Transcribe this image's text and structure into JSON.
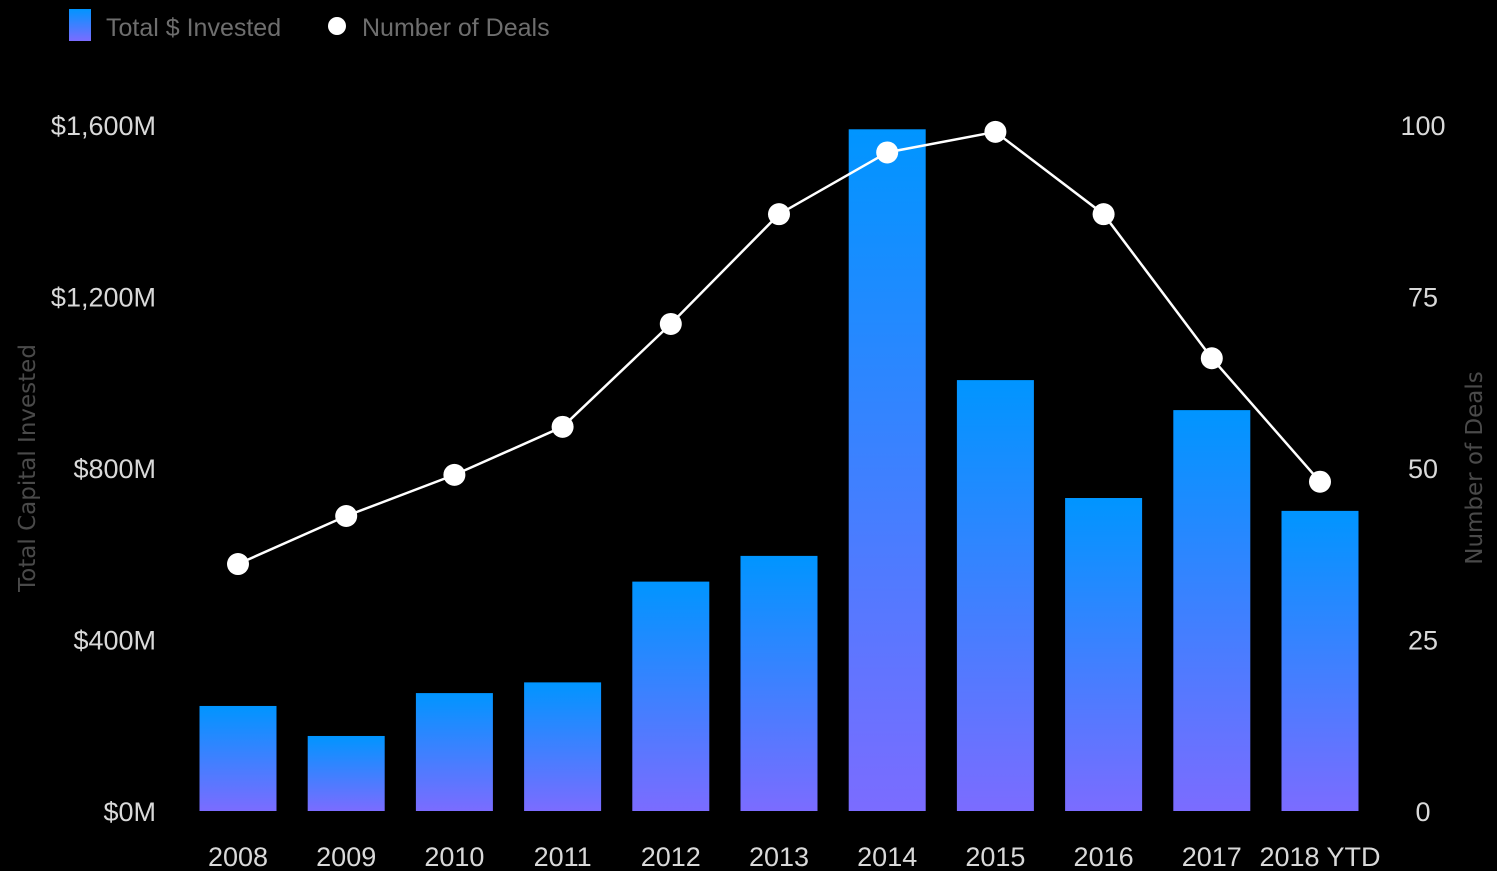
{
  "chart_data": {
    "type": "bar",
    "title": "",
    "categories": [
      "2008",
      "2009",
      "2010",
      "2011",
      "2012",
      "2013",
      "2014",
      "2015",
      "2016",
      "2017",
      "2018 YTD"
    ],
    "series": [
      {
        "name": "Total $ Invested",
        "type": "bar",
        "axis": "left",
        "values": [
          245,
          175,
          275,
          300,
          535,
          595,
          1590,
          1005,
          730,
          935,
          700
        ]
      },
      {
        "name": "Number of Deals",
        "type": "line",
        "axis": "right",
        "values": [
          36,
          43,
          49,
          56,
          71,
          87,
          96,
          99,
          87,
          66,
          48
        ]
      }
    ],
    "ylabel": "Total Capital Invested",
    "y2label": "Number of Deals",
    "ylim": [
      0,
      1600
    ],
    "y2lim": [
      0,
      100
    ],
    "yticks": [
      "$0M",
      "$400M",
      "$800M",
      "$1,200M",
      "$1,600M"
    ],
    "y2ticks": [
      "0",
      "25",
      "50",
      "75",
      "100"
    ],
    "legend_position": "top-left",
    "grid": false
  },
  "colors": {
    "background": "#000000",
    "bar_top": "#0095ff",
    "bar_bottom": "#7b6cff",
    "line": "#ffffff",
    "marker": "#ffffff",
    "tick_text": "#d9d9d9",
    "axis_title": "#4a4a4a",
    "legend_text": "#6e6e6e"
  }
}
